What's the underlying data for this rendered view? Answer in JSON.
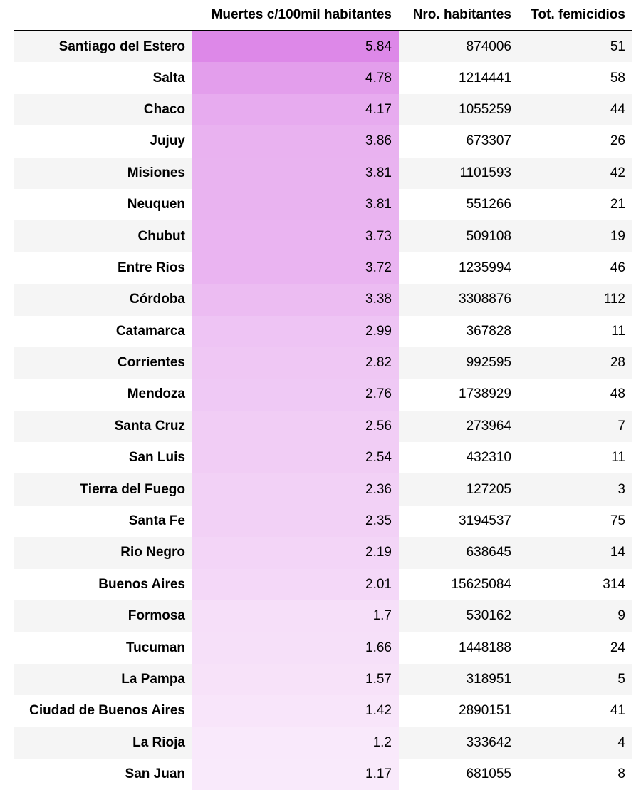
{
  "chart_data": {
    "type": "table",
    "columns": [
      "Muertes c/100mil habitantes",
      "Nro. habitantes",
      "Tot. femicidios"
    ],
    "rows": [
      {
        "province": "Santiago del Estero",
        "rate": "5.84",
        "population": "874006",
        "total": "51"
      },
      {
        "province": "Salta",
        "rate": "4.78",
        "population": "1214441",
        "total": "58"
      },
      {
        "province": "Chaco",
        "rate": "4.17",
        "population": "1055259",
        "total": "44"
      },
      {
        "province": "Jujuy",
        "rate": "3.86",
        "population": "673307",
        "total": "26"
      },
      {
        "province": "Misiones",
        "rate": "3.81",
        "population": "1101593",
        "total": "42"
      },
      {
        "province": "Neuquen",
        "rate": "3.81",
        "population": "551266",
        "total": "21"
      },
      {
        "province": "Chubut",
        "rate": "3.73",
        "population": "509108",
        "total": "19"
      },
      {
        "province": "Entre Rios",
        "rate": "3.72",
        "population": "1235994",
        "total": "46"
      },
      {
        "province": "Córdoba",
        "rate": "3.38",
        "population": "3308876",
        "total": "112"
      },
      {
        "province": "Catamarca",
        "rate": "2.99",
        "population": "367828",
        "total": "11"
      },
      {
        "province": "Corrientes",
        "rate": "2.82",
        "population": "992595",
        "total": "28"
      },
      {
        "province": "Mendoza",
        "rate": "2.76",
        "population": "1738929",
        "total": "48"
      },
      {
        "province": "Santa Cruz",
        "rate": "2.56",
        "population": "273964",
        "total": "7"
      },
      {
        "province": "San Luis",
        "rate": "2.54",
        "population": "432310",
        "total": "11"
      },
      {
        "province": "Tierra del Fuego",
        "rate": "2.36",
        "population": "127205",
        "total": "3"
      },
      {
        "province": "Santa Fe",
        "rate": "2.35",
        "population": "3194537",
        "total": "75"
      },
      {
        "province": "Rio Negro",
        "rate": "2.19",
        "population": "638645",
        "total": "14"
      },
      {
        "province": "Buenos Aires",
        "rate": "2.01",
        "population": "15625084",
        "total": "314"
      },
      {
        "province": "Formosa",
        "rate": "1.7",
        "population": "530162",
        "total": "9"
      },
      {
        "province": "Tucuman",
        "rate": "1.66",
        "population": "1448188",
        "total": "24"
      },
      {
        "province": "La Pampa",
        "rate": "1.57",
        "population": "318951",
        "total": "5"
      },
      {
        "province": "Ciudad de Buenos Aires",
        "rate": "1.42",
        "population": "2890151",
        "total": "41"
      },
      {
        "province": "La Rioja",
        "rate": "1.2",
        "population": "333642",
        "total": "4"
      },
      {
        "province": "San Juan",
        "rate": "1.17",
        "population": "681055",
        "total": "8"
      }
    ],
    "gradient_column": "Muertes c/100mil habitantes",
    "gradient_color_high": "#dd88e8",
    "gradient_color_low": "#f9eafb"
  }
}
